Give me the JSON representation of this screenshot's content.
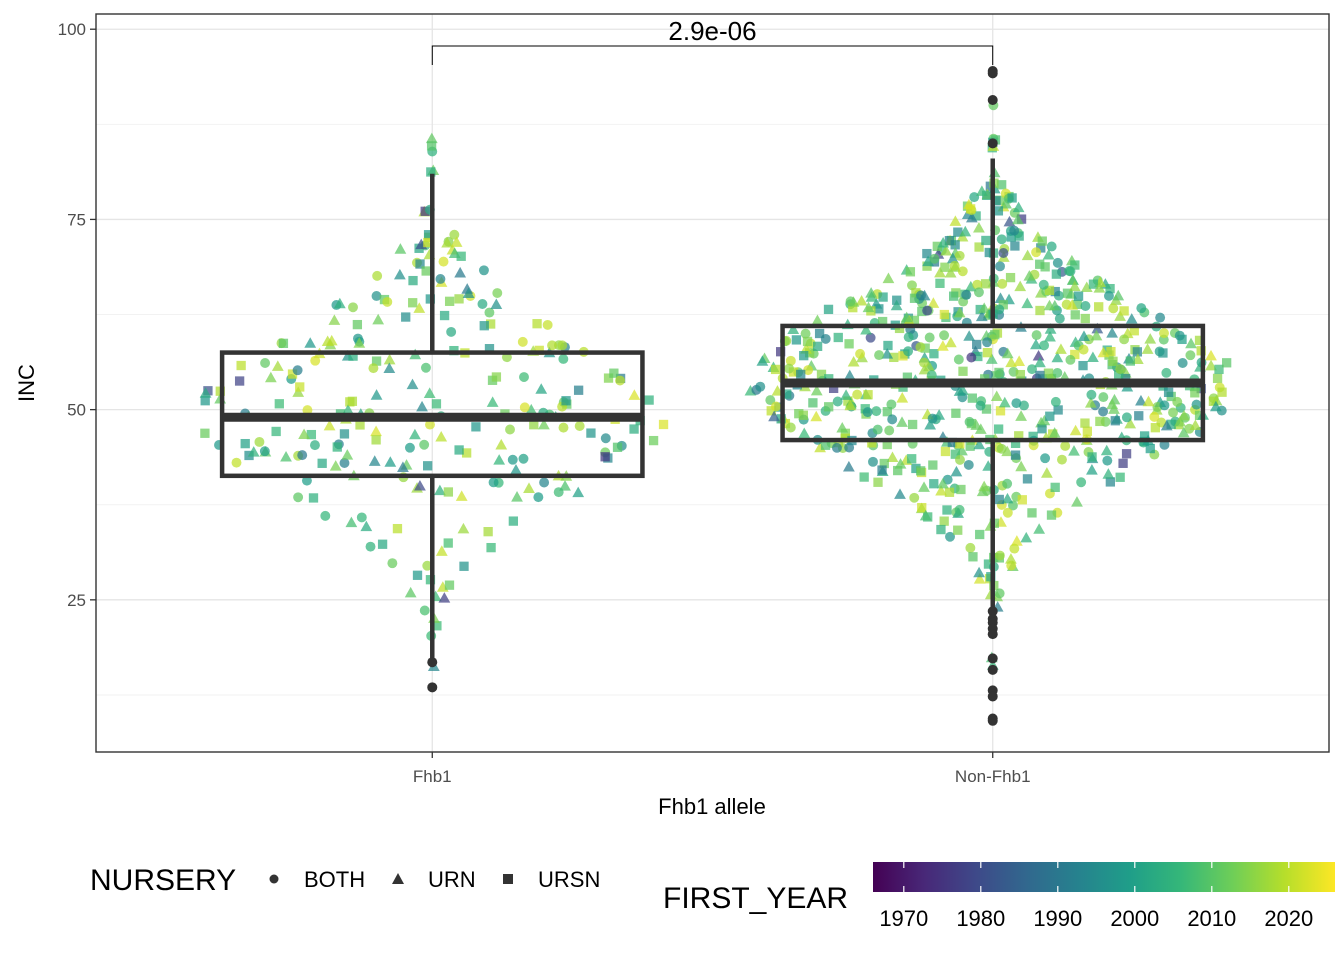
{
  "chart_data": {
    "type": "box",
    "xlabel": "Fhb1 allele",
    "ylabel": "INC",
    "categories": [
      "Fhb1",
      "Non-Fhb1"
    ],
    "ylim": [
      5,
      102
    ],
    "yticks": [
      25,
      50,
      75,
      100
    ],
    "grid": true,
    "boxes": [
      {
        "name": "Fhb1",
        "q1": 41.3,
        "median": 49.0,
        "q3": 57.5,
        "whisker_low": 16.7,
        "whisker_high": 81.0,
        "outliers": [
          13.5,
          16.8
        ]
      },
      {
        "name": "Non-Fhb1",
        "q1": 46.0,
        "median": 53.5,
        "q3": 61.0,
        "whisker_low": 23.5,
        "whisker_high": 83.0,
        "outliers": [
          94.5,
          94.2,
          90.7,
          85.0,
          23.5,
          22.5,
          22.0,
          21.2,
          20.5,
          17.3,
          15.8,
          13.1,
          12.3,
          9.4,
          9.1
        ]
      }
    ],
    "comparison": {
      "groups": [
        "Fhb1",
        "Non-Fhb1"
      ],
      "label": "2.9e-06",
      "y": 97.8
    },
    "point_groups": [
      {
        "category": "Fhb1",
        "n": 260,
        "center": 49.5,
        "spread": 11.5,
        "max_halfwidth": 0.42
      },
      {
        "category": "Non-Fhb1",
        "n": 700,
        "center": 53.5,
        "spread": 11.5,
        "max_halfwidth": 0.44
      }
    ],
    "shape_legend": {
      "title": "NURSERY",
      "items": [
        {
          "label": "BOTH",
          "shape": "circle"
        },
        {
          "label": "URN",
          "shape": "triangle"
        },
        {
          "label": "URSN",
          "shape": "square"
        }
      ]
    },
    "color_legend": {
      "title": "FIRST_YEAR",
      "range": [
        1966,
        2026
      ],
      "ticks": [
        1970,
        1980,
        1990,
        2000,
        2010,
        2020
      ],
      "palette": [
        "#440154",
        "#482878",
        "#3e4989",
        "#31688e",
        "#26828e",
        "#1f9e89",
        "#35b779",
        "#6ece58",
        "#b5de2b",
        "#fde725"
      ]
    }
  }
}
